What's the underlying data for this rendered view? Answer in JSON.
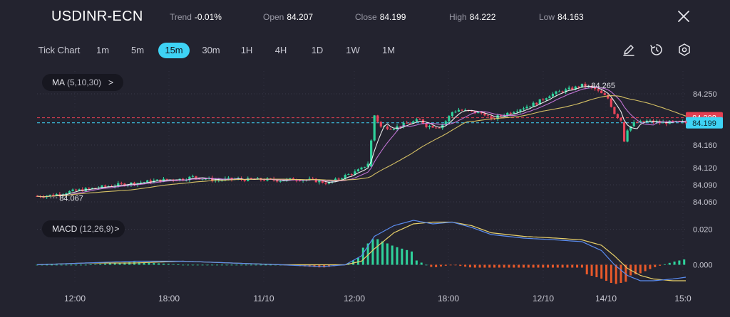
{
  "header": {
    "symbol": "USDINR-ECN",
    "trend_label": "Trend",
    "trend_value": "-0.01%",
    "open_label": "Open",
    "open_value": "84.207",
    "close_label": "Close",
    "close_value": "84.199",
    "high_label": "High",
    "high_value": "84.222",
    "low_label": "Low",
    "low_value": "84.163",
    "close_icon": "close-icon"
  },
  "toolbar": {
    "timeframes": [
      "Tick Chart",
      "1m",
      "5m",
      "15m",
      "30m",
      "1H",
      "4H",
      "1D",
      "1W",
      "1M"
    ],
    "active": "15m",
    "icons": [
      "pencil-icon",
      "timer-icon",
      "settings-icon"
    ]
  },
  "indicators": {
    "ma_label": "MA",
    "ma_params": "(5,10,30)",
    "ma_chevron": ">",
    "macd_label": "MACD",
    "macd_params": "(12,26,9)",
    "macd_chevron": ">"
  },
  "chart_data": {
    "type": "candlestick",
    "instrument": "USDINR-ECN",
    "timeframe": "15m",
    "x_tick_labels": [
      "12:00",
      "18:00",
      "11/10",
      "12:00",
      "18:00",
      "12/10",
      "14/10",
      "15:0"
    ],
    "price_axis": {
      "ticks": [
        84.25,
        84.16,
        84.12,
        84.09,
        84.06
      ],
      "tick_labels": [
        "84.250",
        "84.160",
        "84.120",
        "84.090",
        "84.060"
      ],
      "range": [
        84.04,
        84.29
      ]
    },
    "reference_lines": [
      {
        "label": "84.208",
        "value": 84.208,
        "color": "#e23f52",
        "style": "dashed"
      },
      {
        "label": "84.199",
        "value": 84.199,
        "color": "#3ed3f5",
        "style": "dashed"
      }
    ],
    "annotations": [
      {
        "label": "84.265",
        "value": 84.265,
        "type": "session-high"
      },
      {
        "label": "84.067",
        "value": 84.067,
        "type": "session-low"
      }
    ],
    "price_path": [
      [
        0,
        84.07
      ],
      [
        5,
        84.072
      ],
      [
        10,
        84.078
      ],
      [
        15,
        84.082
      ],
      [
        20,
        84.086
      ],
      [
        25,
        84.09
      ],
      [
        30,
        84.093
      ],
      [
        35,
        84.096
      ],
      [
        40,
        84.099
      ],
      [
        45,
        84.1
      ],
      [
        48,
        84.104
      ],
      [
        52,
        84.101
      ],
      [
        55,
        84.098
      ],
      [
        60,
        84.1
      ],
      [
        65,
        84.099
      ],
      [
        70,
        84.099
      ],
      [
        75,
        84.098
      ],
      [
        80,
        84.1
      ],
      [
        85,
        84.098
      ],
      [
        88,
        84.095
      ],
      [
        90,
        84.093
      ],
      [
        92,
        84.098
      ],
      [
        95,
        84.106
      ],
      [
        98,
        84.112
      ],
      [
        100,
        84.118
      ],
      [
        102,
        84.128
      ],
      [
        103,
        84.168
      ],
      [
        104,
        84.212
      ],
      [
        106,
        84.192
      ],
      [
        110,
        84.19
      ],
      [
        114,
        84.198
      ],
      [
        118,
        84.204
      ],
      [
        120,
        84.194
      ],
      [
        124,
        84.192
      ],
      [
        126,
        84.202
      ],
      [
        128,
        84.218
      ],
      [
        130,
        84.222
      ],
      [
        134,
        84.218
      ],
      [
        138,
        84.215
      ],
      [
        140,
        84.204
      ],
      [
        142,
        84.21
      ],
      [
        146,
        84.218
      ],
      [
        150,
        84.226
      ],
      [
        154,
        84.234
      ],
      [
        158,
        84.248
      ],
      [
        162,
        84.255
      ],
      [
        166,
        84.261
      ],
      [
        168,
        84.265
      ],
      [
        172,
        84.258
      ],
      [
        176,
        84.242
      ],
      [
        178,
        84.216
      ],
      [
        180,
        84.204
      ],
      [
        182,
        84.188
      ],
      [
        184,
        84.198
      ],
      [
        188,
        84.202
      ],
      [
        192,
        84.199
      ],
      [
        196,
        84.2
      ],
      [
        200,
        84.199
      ]
    ],
    "ma_lines": [
      {
        "name": "MA5",
        "color": "#ffffff"
      },
      {
        "name": "MA10",
        "color": "#d17ce6"
      },
      {
        "name": "MA30",
        "color": "#e8d06a"
      }
    ],
    "macd": {
      "params": "(12,26,9)",
      "axis_ticks": [
        0.02,
        0.0
      ],
      "axis_tick_labels": [
        "0.020",
        "0.000"
      ],
      "range": [
        -0.011,
        0.027
      ],
      "macd_line_color": "#5b8df0",
      "signal_line_color": "#e8d06a",
      "macd_path": [
        [
          0,
          0.0
        ],
        [
          15,
          0.001
        ],
        [
          30,
          0.002
        ],
        [
          45,
          0.002
        ],
        [
          60,
          0.001
        ],
        [
          75,
          0.0
        ],
        [
          88,
          -0.001
        ],
        [
          95,
          0.0
        ],
        [
          100,
          0.005
        ],
        [
          104,
          0.016
        ],
        [
          110,
          0.022
        ],
        [
          116,
          0.025
        ],
        [
          122,
          0.023
        ],
        [
          128,
          0.024
        ],
        [
          134,
          0.021
        ],
        [
          140,
          0.017
        ],
        [
          150,
          0.015
        ],
        [
          160,
          0.014
        ],
        [
          168,
          0.013
        ],
        [
          174,
          0.008
        ],
        [
          178,
          0.0
        ],
        [
          182,
          -0.006
        ],
        [
          186,
          -0.009
        ],
        [
          190,
          -0.009
        ],
        [
          196,
          -0.008
        ],
        [
          200,
          -0.007
        ]
      ],
      "signal_path": [
        [
          0,
          0.0
        ],
        [
          15,
          0.001
        ],
        [
          30,
          0.001
        ],
        [
          45,
          0.002
        ],
        [
          60,
          0.001
        ],
        [
          75,
          0.0
        ],
        [
          88,
          0.0
        ],
        [
          95,
          0.0
        ],
        [
          100,
          0.002
        ],
        [
          104,
          0.009
        ],
        [
          110,
          0.018
        ],
        [
          116,
          0.023
        ],
        [
          122,
          0.024
        ],
        [
          128,
          0.024
        ],
        [
          134,
          0.022
        ],
        [
          140,
          0.018
        ],
        [
          150,
          0.016
        ],
        [
          160,
          0.015
        ],
        [
          168,
          0.014
        ],
        [
          174,
          0.011
        ],
        [
          178,
          0.005
        ],
        [
          182,
          -0.002
        ],
        [
          186,
          -0.006
        ],
        [
          190,
          -0.008
        ],
        [
          196,
          -0.009
        ],
        [
          200,
          -0.009
        ]
      ]
    }
  }
}
